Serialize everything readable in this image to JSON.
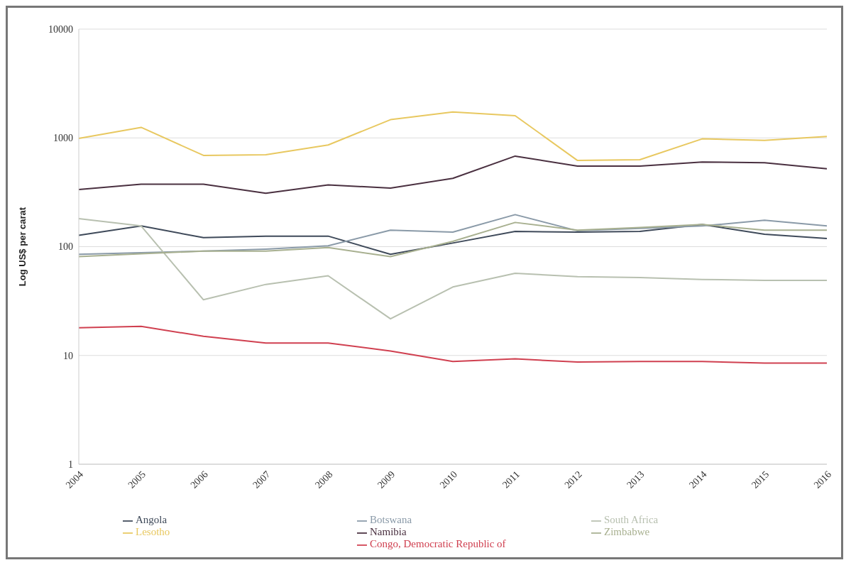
{
  "chart_data": {
    "type": "line",
    "ylabel": "Log US$ per carat",
    "categories": [
      "2004",
      "2005",
      "2006",
      "2007",
      "2008",
      "2009",
      "2010",
      "2011",
      "2012",
      "2013",
      "2014",
      "2015",
      "2016"
    ],
    "log": true,
    "ylim": [
      1,
      10000
    ],
    "yticks": [
      1,
      10,
      100,
      1000,
      10000
    ],
    "grid": "y",
    "legend": "bottom",
    "marker": "none",
    "line_style": "solid",
    "series": [
      {
        "name": "Angola",
        "color": "#3f4a5a",
        "values": [
          127,
          155,
          121,
          125,
          125,
          85,
          108,
          138,
          136,
          138,
          160,
          130,
          119
        ]
      },
      {
        "name": "Botswana",
        "color": "#8a9aa8",
        "values": [
          85,
          88,
          91,
          95,
          102,
          142,
          136,
          197,
          140,
          147,
          155,
          175,
          155
        ]
      },
      {
        "name": "South Africa",
        "color": "#b8c0b0",
        "values": [
          181,
          155,
          32.5,
          45,
          54,
          21.7,
          42.6,
          57,
          53,
          52,
          50,
          49,
          49
        ]
      },
      {
        "name": "Lesotho",
        "color": "#e8c860",
        "values": [
          990,
          1250,
          690,
          700,
          860,
          1470,
          1730,
          1600,
          620,
          630,
          980,
          950,
          1030
        ]
      },
      {
        "name": "Namibia",
        "color": "#4a3040",
        "values": [
          335,
          375,
          375,
          310,
          370,
          345,
          425,
          680,
          550,
          550,
          600,
          590,
          520
        ]
      },
      {
        "name": "Zimbabwe",
        "color": "#a8b090",
        "values": [
          81,
          86,
          91,
          91,
          98,
          81,
          112,
          167,
          142,
          150,
          160,
          142,
          142
        ]
      },
      {
        "name": "Congo, Democratic Republic of",
        "color": "#d04050",
        "values": [
          18,
          18.5,
          15,
          13,
          13,
          11,
          8.8,
          9.3,
          8.7,
          8.8,
          8.8,
          8.5,
          8.5
        ]
      }
    ]
  }
}
